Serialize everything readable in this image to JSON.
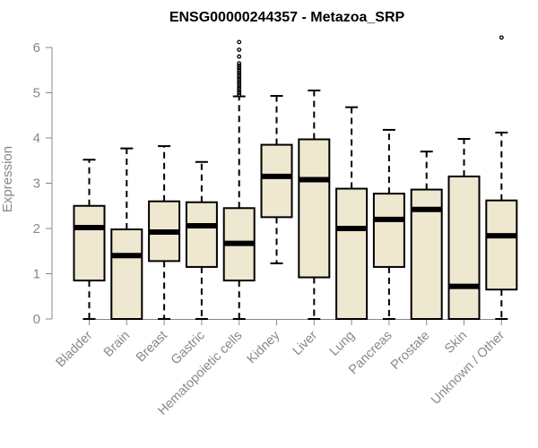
{
  "chart_data": {
    "type": "boxplot",
    "title": "ENSG00000244357 - Metazoa_SRP",
    "xlabel": "",
    "ylabel": "Expression",
    "ylim": [
      0,
      6.2
    ],
    "yticks": [
      0,
      1,
      2,
      3,
      4,
      5,
      6
    ],
    "categories": [
      "Bladder",
      "Brain",
      "Breast",
      "Gastric",
      "Hematopoietic cells",
      "Kidney",
      "Liver",
      "Lung",
      "Pancreas",
      "Prostate",
      "Skin",
      "Unknown / Other"
    ],
    "boxes": [
      {
        "min": 0.0,
        "q1": 0.85,
        "median": 2.02,
        "q3": 2.5,
        "max": 3.52,
        "outliers": []
      },
      {
        "min": 0.0,
        "q1": 0.0,
        "median": 1.4,
        "q3": 1.98,
        "max": 3.77,
        "outliers": []
      },
      {
        "min": 0.0,
        "q1": 1.28,
        "median": 1.92,
        "q3": 2.6,
        "max": 3.82,
        "outliers": []
      },
      {
        "min": 0.0,
        "q1": 1.15,
        "median": 2.06,
        "q3": 2.58,
        "max": 3.47,
        "outliers": []
      },
      {
        "min": 0.0,
        "q1": 0.85,
        "median": 1.67,
        "q3": 2.45,
        "max": 4.92,
        "outliers": [
          4.95,
          5.0,
          5.05,
          5.1,
          5.15,
          5.2,
          5.25,
          5.3,
          5.35,
          5.4,
          5.45,
          5.5,
          5.55,
          5.6,
          5.65,
          5.8,
          5.95,
          6.12
        ]
      },
      {
        "min": 1.23,
        "q1": 2.25,
        "median": 3.15,
        "q3": 3.85,
        "max": 4.93,
        "outliers": []
      },
      {
        "min": 0.0,
        "q1": 0.92,
        "median": 3.08,
        "q3": 3.97,
        "max": 5.05,
        "outliers": []
      },
      {
        "min": 0.0,
        "q1": 0.0,
        "median": 2.0,
        "q3": 2.88,
        "max": 4.68,
        "outliers": []
      },
      {
        "min": 0.0,
        "q1": 1.15,
        "median": 2.2,
        "q3": 2.77,
        "max": 4.18,
        "outliers": []
      },
      {
        "min": 0.0,
        "q1": 0.0,
        "median": 2.42,
        "q3": 2.86,
        "max": 3.7,
        "outliers": []
      },
      {
        "min": 0.0,
        "q1": 0.0,
        "median": 0.72,
        "q3": 3.15,
        "max": 3.98,
        "outliers": []
      },
      {
        "min": 0.0,
        "q1": 0.65,
        "median": 1.84,
        "q3": 2.62,
        "max": 4.12,
        "outliers": [
          6.22
        ]
      }
    ],
    "colors": {
      "box_fill": "#efe8d0",
      "stroke": "#000000",
      "axis": "#888888",
      "title": "#000000"
    }
  }
}
